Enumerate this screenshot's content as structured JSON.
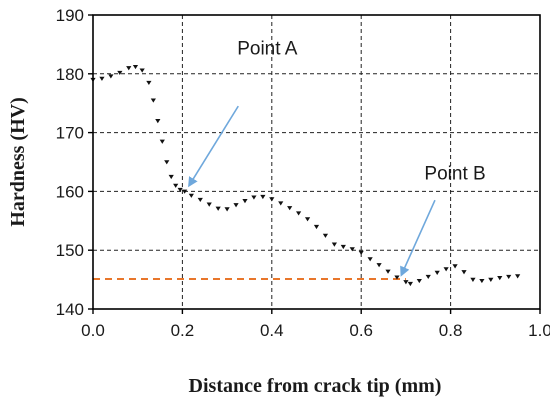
{
  "chart_data": {
    "type": "scatter",
    "title": "",
    "xlabel": "Distance from crack tip (mm)",
    "ylabel": "Hardness (HV)",
    "xlim": [
      0.0,
      1.0
    ],
    "ylim": [
      140,
      190
    ],
    "xticks": [
      0.0,
      0.2,
      0.4,
      0.6,
      0.8,
      1.0
    ],
    "xtick_labels": [
      "0.0",
      "0.2",
      "0.4",
      "0.6",
      "0.8",
      "1.0"
    ],
    "yticks": [
      140,
      150,
      160,
      170,
      180,
      190
    ],
    "ytick_labels": [
      "140",
      "150",
      "160",
      "170",
      "180",
      "190"
    ],
    "grid": true,
    "series": [
      {
        "name": "",
        "color": "#111111",
        "marker": "triangle-down",
        "x": [
          0.0,
          0.02,
          0.04,
          0.06,
          0.08,
          0.095,
          0.11,
          0.125,
          0.135,
          0.145,
          0.155,
          0.165,
          0.175,
          0.185,
          0.195,
          0.205,
          0.22,
          0.24,
          0.26,
          0.28,
          0.3,
          0.32,
          0.34,
          0.36,
          0.38,
          0.4,
          0.42,
          0.44,
          0.46,
          0.48,
          0.5,
          0.52,
          0.54,
          0.56,
          0.58,
          0.6,
          0.62,
          0.64,
          0.66,
          0.68,
          0.7,
          0.71,
          0.73,
          0.75,
          0.77,
          0.79,
          0.81,
          0.83,
          0.85,
          0.87,
          0.89,
          0.91,
          0.93,
          0.95
        ],
        "y": [
          179.0,
          179.2,
          179.6,
          180.2,
          181.0,
          181.2,
          180.6,
          178.5,
          175.5,
          172.0,
          168.5,
          165.0,
          162.5,
          161.0,
          160.3,
          160.0,
          159.3,
          158.6,
          157.8,
          157.1,
          157.0,
          157.7,
          158.4,
          159.0,
          159.1,
          158.7,
          158.0,
          157.2,
          156.3,
          155.3,
          154.0,
          152.5,
          151.0,
          150.6,
          150.2,
          149.6,
          148.5,
          147.5,
          146.4,
          145.4,
          144.6,
          144.3,
          144.8,
          145.5,
          146.2,
          146.8,
          147.3,
          146.3,
          145.0,
          144.8,
          145.0,
          145.3,
          145.5,
          145.6
        ]
      }
    ],
    "reference_line": {
      "y": 145.1,
      "x_start": 0.0,
      "x_end": 0.7,
      "color": "#E8762B",
      "style": "dashed"
    },
    "annotations": [
      {
        "text": "Point A",
        "text_x": 0.39,
        "text_y": 184.5,
        "arrow_from": [
          0.325,
          174.5
        ],
        "arrow_to": [
          0.215,
          161.0
        ]
      },
      {
        "text": "Point B",
        "text_x": 0.81,
        "text_y": 163.2,
        "arrow_from": [
          0.765,
          158.5
        ],
        "arrow_to": [
          0.69,
          145.8
        ]
      }
    ]
  },
  "colors": {
    "arrow": "#6FA8DC",
    "grid": "#222222",
    "axis": "#000000"
  }
}
